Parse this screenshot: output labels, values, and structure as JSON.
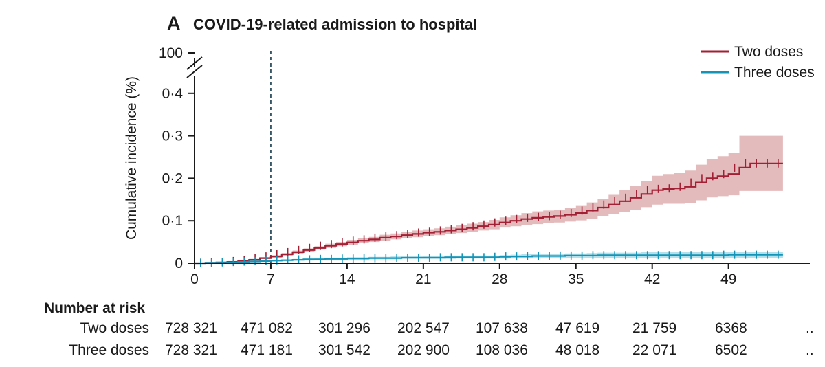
{
  "panel_letter": "A",
  "colors": {
    "two_doses": "#a31f34",
    "three_doses": "#1495b8",
    "two_doses_band": "#dba4a6",
    "three_doses_band": "#93d3e2"
  },
  "chart_data": {
    "type": "line",
    "title": "COVID-19-related admission to hospital",
    "ylabel": "Cumulative incidence (%)",
    "xlabel": "",
    "x_ticks": [
      "0",
      "7",
      "14",
      "21",
      "28",
      "35",
      "42",
      "49"
    ],
    "y_ticks": [
      "0",
      "0·1",
      "0·2",
      "0·3",
      "0·4"
    ],
    "y_break_label": "100",
    "xlim": [
      0,
      56
    ],
    "ylim": [
      0,
      0.45
    ],
    "vertical_reference_line_x": 7,
    "legend_position": "top-right",
    "series": [
      {
        "name": "Two doses",
        "x": [
          0,
          1,
          2,
          3,
          4,
          5,
          6,
          7,
          8,
          9,
          10,
          11,
          12,
          13,
          14,
          15,
          16,
          17,
          18,
          19,
          20,
          21,
          22,
          23,
          24,
          25,
          26,
          27,
          28,
          29,
          30,
          31,
          32,
          33,
          34,
          35,
          36,
          37,
          38,
          39,
          40,
          41,
          42,
          43,
          44,
          45,
          46,
          47,
          48,
          49,
          50,
          51,
          52,
          53,
          54
        ],
        "y": [
          0,
          0.001,
          0.002,
          0.003,
          0.005,
          0.008,
          0.012,
          0.016,
          0.021,
          0.026,
          0.031,
          0.036,
          0.041,
          0.045,
          0.049,
          0.053,
          0.056,
          0.06,
          0.063,
          0.066,
          0.069,
          0.072,
          0.074,
          0.077,
          0.08,
          0.083,
          0.087,
          0.091,
          0.096,
          0.1,
          0.104,
          0.107,
          0.109,
          0.111,
          0.114,
          0.118,
          0.124,
          0.131,
          0.138,
          0.146,
          0.154,
          0.163,
          0.172,
          0.175,
          0.176,
          0.18,
          0.19,
          0.2,
          0.205,
          0.21,
          0.225,
          0.235,
          0.235,
          0.235,
          0.235
        ],
        "ci_low": [
          0,
          0,
          0.001,
          0.002,
          0.004,
          0.006,
          0.01,
          0.013,
          0.018,
          0.022,
          0.027,
          0.032,
          0.036,
          0.04,
          0.043,
          0.047,
          0.05,
          0.053,
          0.056,
          0.059,
          0.061,
          0.064,
          0.066,
          0.068,
          0.071,
          0.074,
          0.077,
          0.08,
          0.084,
          0.087,
          0.09,
          0.092,
          0.094,
          0.096,
          0.098,
          0.101,
          0.105,
          0.11,
          0.115,
          0.12,
          0.126,
          0.132,
          0.138,
          0.14,
          0.14,
          0.142,
          0.148,
          0.155,
          0.158,
          0.16,
          0.17,
          0.17,
          0.17,
          0.17,
          0.17
        ],
        "ci_high": [
          0,
          0.002,
          0.003,
          0.005,
          0.007,
          0.01,
          0.014,
          0.019,
          0.024,
          0.03,
          0.035,
          0.04,
          0.046,
          0.05,
          0.055,
          0.059,
          0.062,
          0.067,
          0.07,
          0.073,
          0.077,
          0.08,
          0.082,
          0.086,
          0.089,
          0.093,
          0.097,
          0.102,
          0.108,
          0.113,
          0.118,
          0.122,
          0.124,
          0.126,
          0.13,
          0.135,
          0.143,
          0.152,
          0.161,
          0.172,
          0.182,
          0.194,
          0.206,
          0.21,
          0.212,
          0.218,
          0.232,
          0.245,
          0.252,
          0.26,
          0.3,
          0.3,
          0.3,
          0.3,
          0.3
        ]
      },
      {
        "name": "Three doses",
        "x": [
          0,
          1,
          2,
          3,
          4,
          5,
          6,
          7,
          8,
          9,
          10,
          11,
          12,
          13,
          14,
          15,
          16,
          17,
          18,
          19,
          20,
          21,
          22,
          23,
          24,
          25,
          26,
          27,
          28,
          29,
          30,
          31,
          32,
          33,
          34,
          35,
          36,
          37,
          38,
          39,
          40,
          41,
          42,
          43,
          44,
          45,
          46,
          47,
          48,
          49,
          50,
          51,
          52,
          53,
          54
        ],
        "y": [
          0,
          0.001,
          0.001,
          0.002,
          0.003,
          0.004,
          0.005,
          0.006,
          0.007,
          0.008,
          0.009,
          0.009,
          0.01,
          0.01,
          0.011,
          0.011,
          0.012,
          0.012,
          0.012,
          0.013,
          0.013,
          0.013,
          0.013,
          0.014,
          0.014,
          0.014,
          0.014,
          0.014,
          0.015,
          0.016,
          0.016,
          0.017,
          0.017,
          0.017,
          0.018,
          0.018,
          0.018,
          0.019,
          0.019,
          0.019,
          0.019,
          0.019,
          0.019,
          0.019,
          0.019,
          0.019,
          0.019,
          0.019,
          0.019,
          0.02,
          0.02,
          0.02,
          0.02,
          0.02,
          0.02
        ],
        "ci_low": [
          0,
          0,
          0,
          0.001,
          0.002,
          0.003,
          0.003,
          0.004,
          0.005,
          0.006,
          0.006,
          0.007,
          0.007,
          0.008,
          0.008,
          0.008,
          0.009,
          0.009,
          0.009,
          0.01,
          0.01,
          0.01,
          0.01,
          0.01,
          0.011,
          0.011,
          0.011,
          0.011,
          0.011,
          0.012,
          0.012,
          0.012,
          0.012,
          0.013,
          0.013,
          0.013,
          0.013,
          0.013,
          0.013,
          0.013,
          0.013,
          0.013,
          0.013,
          0.013,
          0.013,
          0.013,
          0.013,
          0.013,
          0.013,
          0.013,
          0.013,
          0.013,
          0.013,
          0.013,
          0.013
        ],
        "ci_high": [
          0,
          0.002,
          0.002,
          0.003,
          0.004,
          0.005,
          0.007,
          0.008,
          0.009,
          0.01,
          0.011,
          0.012,
          0.013,
          0.013,
          0.014,
          0.014,
          0.015,
          0.015,
          0.016,
          0.016,
          0.016,
          0.017,
          0.017,
          0.018,
          0.018,
          0.018,
          0.018,
          0.018,
          0.019,
          0.02,
          0.021,
          0.022,
          0.022,
          0.022,
          0.023,
          0.023,
          0.024,
          0.025,
          0.025,
          0.025,
          0.025,
          0.026,
          0.026,
          0.026,
          0.026,
          0.026,
          0.026,
          0.026,
          0.026,
          0.027,
          0.027,
          0.027,
          0.027,
          0.027,
          0.027
        ]
      }
    ]
  },
  "risk_table": {
    "heading": "Number at risk",
    "rows": [
      {
        "label": "Two doses",
        "values": [
          "728 321",
          "471 082",
          "301 296",
          "202 547",
          "107 638",
          "47 619",
          "21 759",
          "6368",
          ".."
        ]
      },
      {
        "label": "Three doses",
        "values": [
          "728 321",
          "471 181",
          "301 542",
          "202 900",
          "108 036",
          "48 018",
          "22 071",
          "6502",
          ".."
        ]
      }
    ]
  }
}
